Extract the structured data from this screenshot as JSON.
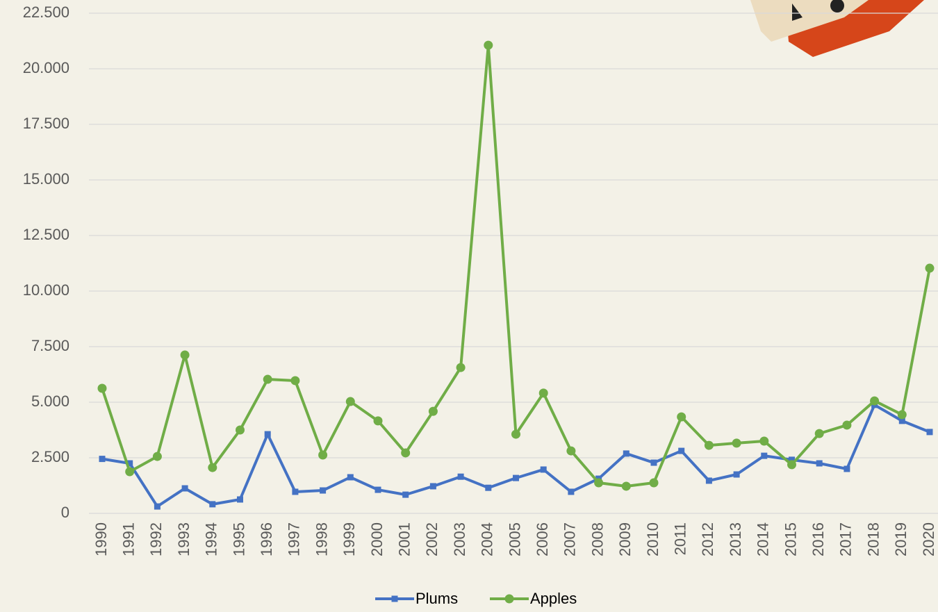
{
  "chart_data": {
    "type": "line",
    "categories": [
      "1990",
      "1991",
      "1992",
      "1993",
      "1994",
      "1995",
      "1996",
      "1997",
      "1998",
      "1999",
      "2000",
      "2001",
      "2002",
      "2003",
      "2004",
      "2005",
      "2006",
      "2007",
      "2008",
      "2009",
      "2010",
      "2011",
      "2012",
      "2013",
      "2014",
      "2015",
      "2016",
      "2017",
      "2018",
      "2019",
      "2020"
    ],
    "series": [
      {
        "name": "Plums",
        "color": "#4472c4",
        "marker": "square",
        "values": [
          2450,
          2250,
          310,
          1125,
          410,
          625,
          3560,
          970,
          1030,
          1625,
          1060,
          840,
          1220,
          1650,
          1150,
          1590,
          1970,
          970,
          1560,
          2690,
          2280,
          2810,
          1470,
          1750,
          2590,
          2410,
          2250,
          2000,
          4880,
          4160,
          3660
        ]
      },
      {
        "name": "Apples",
        "color": "#70ad47",
        "marker": "circle",
        "values": [
          5625,
          1875,
          2560,
          7125,
          2060,
          3750,
          6030,
          5970,
          2625,
          5030,
          4160,
          2720,
          4590,
          6560,
          21060,
          3560,
          5410,
          2810,
          1375,
          1220,
          1375,
          4340,
          3060,
          3160,
          3250,
          2190,
          3590,
          3970,
          5060,
          4440,
          11030
        ]
      }
    ],
    "ylim": [
      0,
      22500
    ],
    "yticks": [
      0,
      {
        "value": 2500,
        "label": "2.500"
      },
      {
        "value": 5000,
        "label": "5.000"
      },
      {
        "value": 7500,
        "label": "7.500"
      },
      {
        "value": 10000,
        "label": "10.000"
      },
      {
        "value": 12500,
        "label": "12.500"
      },
      {
        "value": 15000,
        "label": "15.000"
      },
      {
        "value": 17500,
        "label": "17.500"
      },
      {
        "value": 20000,
        "label": "20.000"
      },
      {
        "value": 22500,
        "label": "22.500"
      }
    ],
    "grid": true,
    "legend": "bottom"
  }
}
